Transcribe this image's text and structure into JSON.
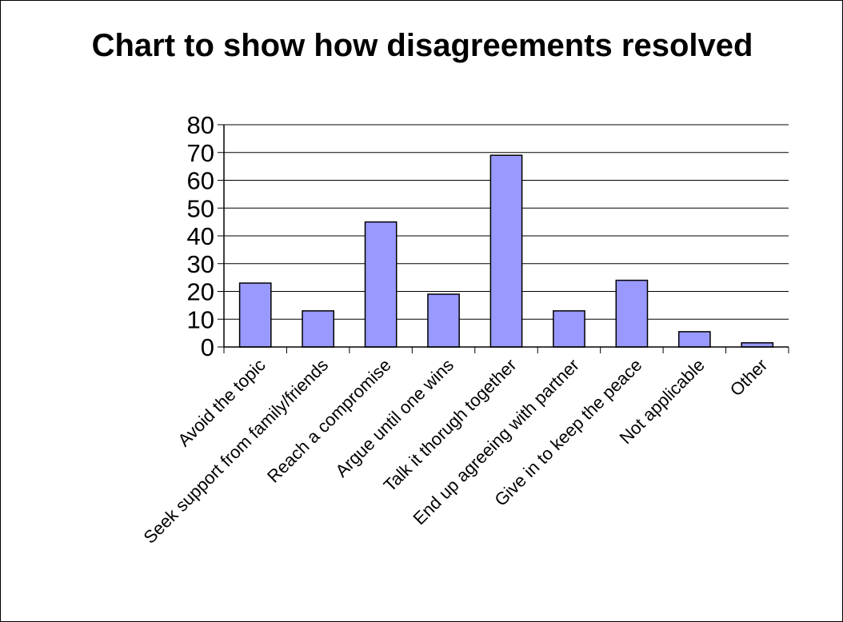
{
  "chart_data": {
    "type": "bar",
    "title": "Chart to show how disagreements resolved",
    "categories": [
      "Avoid the topic",
      "Seek support from family/friends",
      "Reach a compromise",
      "Argue until one wins",
      "Talk it thorugh together",
      "End up agreeing with partner",
      "Give in to keep the peace",
      "Not applicable",
      "Other"
    ],
    "values": [
      23,
      13,
      45,
      19,
      69,
      13,
      24,
      5.5,
      1.5
    ],
    "xlabel": "",
    "ylabel": "",
    "ylim": [
      0,
      80
    ],
    "yticks": [
      0,
      10,
      20,
      30,
      40,
      50,
      60,
      70,
      80
    ],
    "grid": true,
    "legend": "none",
    "bar_color": "#9999ff",
    "bar_edge_color": "#000000"
  }
}
